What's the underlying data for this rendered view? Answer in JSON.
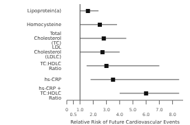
{
  "chart_data": {
    "type": "forest",
    "xlabel": "Relative Risk of Future Cardiovascular Events",
    "categories": [
      "Lipoprotein(a)",
      "Homocysteine",
      "Total Cholesterol (TC)",
      "LDL Cholesterol (LDLC)",
      "TC:HDLC Ratio",
      "hs-CRP",
      "hs-CRP + TC:HDLC Ratio"
    ],
    "values": [
      1.6,
      2.5,
      2.8,
      2.7,
      3.0,
      3.5,
      6.0
    ],
    "ci_low": [
      1.0,
      1.0,
      1.0,
      1.0,
      1.5,
      1.8,
      4.0
    ],
    "ci_high": [
      2.4,
      3.8,
      4.5,
      4.0,
      7.0,
      8.5,
      8.5
    ],
    "reference_line": 1.0,
    "xlim": [
      0,
      8.8
    ],
    "xticks": [
      0,
      0.5,
      {
        "value": 1.0,
        "label": "1.0"
      },
      {
        "value": 2.0,
        "label": "2.0"
      },
      {
        "value": 3.0,
        "label": "3.0"
      },
      {
        "value": 4.0,
        "label": "4.0"
      },
      {
        "value": 5.0,
        "label": "5.0"
      },
      {
        "value": 6.0,
        "label": "6.0"
      },
      {
        "value": 7.0,
        "label": "7.0"
      },
      {
        "value": 8.0,
        "label": "8.0"
      }
    ],
    "color": "#111111"
  }
}
